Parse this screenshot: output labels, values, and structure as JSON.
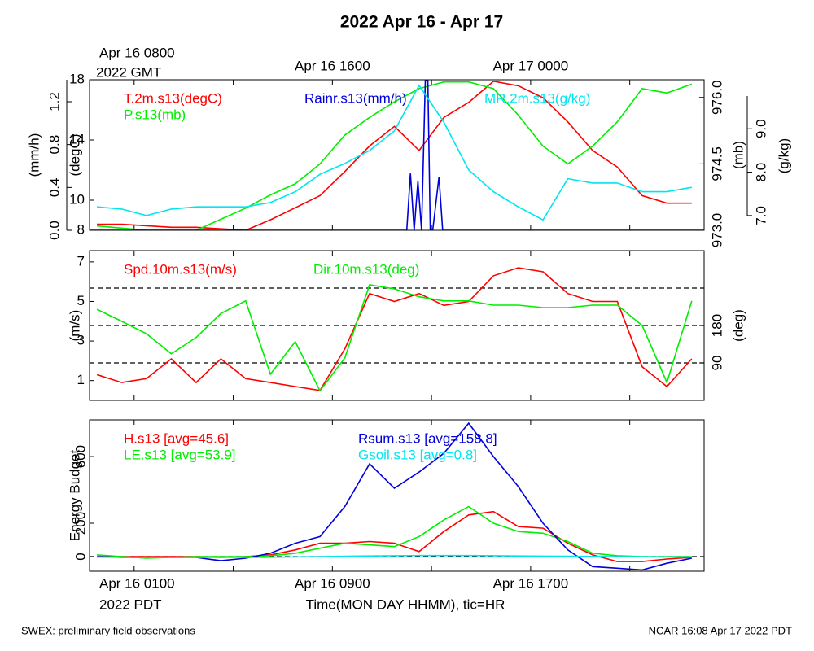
{
  "title": "2022 Apr 16 - Apr 17",
  "footer_left": "SWEX: preliminary field observations",
  "footer_right": "NCAR 16:08 Apr 17 2022 PDT",
  "time_axis": {
    "xlim": [
      -0.8,
      24
    ],
    "xticks": [
      {
        "value": 1,
        "label": "Apr 16 0100"
      },
      {
        "value": 9,
        "label": "Apr 16 0900"
      },
      {
        "value": 17,
        "label": "Apr 16 1700"
      }
    ],
    "minor_xticks": [
      5,
      13,
      21
    ],
    "gmt_ticks": [
      {
        "value": 1,
        "label": "Apr 16 0800"
      },
      {
        "value": 9,
        "label": "Apr 16 1600"
      },
      {
        "value": 17,
        "label": "Apr 17 0000"
      }
    ],
    "gmt_note": "2022 GMT",
    "pdt_note": "2022 PDT",
    "xlabel": "Time(MON DAY HHMM), tic=HR"
  },
  "chart_data": [
    {
      "type": "line",
      "x": [
        -0.5,
        0.5,
        1.5,
        2.5,
        3.5,
        4.5,
        5.5,
        6.5,
        7.5,
        8.5,
        9.5,
        10.5,
        11.5,
        12.5,
        13.5,
        14.5,
        15.5,
        16.5,
        17.5,
        18.5,
        19.5,
        20.5,
        21.5,
        22.5,
        23.5
      ],
      "axes": [
        {
          "label": "(degC)",
          "lim": [
            8,
            18
          ],
          "ticks": [
            8,
            10,
            14,
            18
          ]
        },
        {
          "label": "(mm/h)",
          "lim": [
            0,
            1.405
          ],
          "ticks": [
            {
              "value": 0,
              "label": "0.0"
            },
            0.4,
            0.8,
            1.2
          ]
        },
        {
          "label": "(mb)",
          "lim": [
            973,
            976.4
          ],
          "ticks": [
            {
              "value": 973,
              "label": "973.0"
            },
            974.5,
            {
              "value": 976,
              "label": "976.0"
            }
          ]
        },
        {
          "label": "(g/kg)",
          "lim": [
            6.66,
            10.13
          ],
          "ticks": [
            {
              "value": 7,
              "label": "7.0"
            },
            {
              "value": 8,
              "label": "8.0"
            },
            {
              "value": 9,
              "label": "9.0"
            }
          ]
        }
      ],
      "series": [
        {
          "name": "T.2m.s13(degC)",
          "color": "#ff0000",
          "axis": 0,
          "values": [
            8.4,
            8.4,
            8.3,
            8.2,
            8.2,
            8.1,
            8.0,
            8.7,
            9.5,
            10.3,
            11.9,
            13.6,
            14.9,
            13.3,
            15.5,
            16.5,
            17.9,
            17.6,
            16.8,
            15.2,
            13.3,
            12.2,
            10.3,
            9.8,
            9.8
          ]
        },
        {
          "name": "P.s13(mb)",
          "color": "#00ee00",
          "axis": 2,
          "values": [
            973.1,
            973.05,
            973.0,
            973.0,
            973.0,
            973.25,
            973.5,
            973.8,
            974.05,
            974.5,
            975.15,
            975.55,
            975.9,
            976.2,
            976.35,
            976.35,
            976.2,
            975.6,
            974.9,
            974.5,
            974.9,
            975.45,
            976.2,
            976.1,
            976.3
          ]
        },
        {
          "name": "Rainr.s13(mm/h)",
          "color": "#0000dd",
          "axis": 1,
          "x": [
            -0.8,
            12.0,
            12.15,
            12.3,
            12.45,
            12.6,
            12.75,
            12.85,
            12.95,
            13.05,
            13.3,
            13.45,
            13.6,
            24
          ],
          "values": [
            0,
            0,
            0.53,
            0,
            0.46,
            0,
            1.4,
            1.4,
            0,
            0,
            0.5,
            0,
            0,
            0
          ]
        },
        {
          "name": "MR.2m.s13(g/kg)",
          "color": "#00e5ee",
          "axis": 3,
          "values": [
            7.2,
            7.15,
            7.0,
            7.15,
            7.2,
            7.2,
            7.2,
            7.3,
            7.55,
            7.95,
            8.2,
            8.5,
            8.95,
            10.0,
            9.15,
            8.05,
            7.55,
            7.2,
            6.9,
            7.85,
            7.75,
            7.75,
            7.55,
            7.55,
            7.65
          ]
        }
      ]
    },
    {
      "type": "line",
      "x": [
        -0.5,
        0.5,
        1.5,
        2.5,
        3.5,
        4.5,
        5.5,
        6.5,
        7.5,
        8.5,
        9.5,
        10.5,
        11.5,
        12.5,
        13.5,
        14.5,
        15.5,
        16.5,
        17.5,
        18.5,
        19.5,
        20.5,
        21.5,
        22.5,
        23.5
      ],
      "axes": [
        {
          "label": "(m/s)",
          "lim": [
            0,
            7.57
          ],
          "ticks": [
            1,
            3,
            5,
            7
          ]
        },
        {
          "label": "(deg)",
          "lim": [
            0,
            360
          ],
          "ticks": [
            90,
            180
          ],
          "hlines": [
            90,
            180,
            270
          ]
        }
      ],
      "series": [
        {
          "name": "Spd.10m.s13(m/s)",
          "color": "#ff0000",
          "axis": 0,
          "values": [
            1.3,
            0.9,
            1.1,
            2.1,
            0.9,
            2.1,
            1.1,
            0.9,
            0.7,
            0.5,
            2.6,
            5.4,
            5.0,
            5.4,
            4.8,
            5.0,
            6.3,
            6.7,
            6.5,
            5.4,
            5.0,
            5.0,
            1.7,
            0.7,
            2.1
          ]
        },
        {
          "name": "Dir.10m.s13(deg)",
          "color": "#00ee00",
          "axis": 1,
          "values": [
            219,
            190,
            160,
            112,
            151,
            209,
            239,
            63,
            141,
            23,
            102,
            278,
            268,
            249,
            239,
            239,
            229,
            229,
            223,
            223,
            229,
            229,
            180,
            43,
            239
          ]
        }
      ]
    },
    {
      "type": "line",
      "x": [
        -0.5,
        0.5,
        1.5,
        2.5,
        3.5,
        4.5,
        5.5,
        6.5,
        7.5,
        8.5,
        9.5,
        10.5,
        11.5,
        12.5,
        13.5,
        14.5,
        15.5,
        16.5,
        17.5,
        18.5,
        19.5,
        20.5,
        21.5,
        22.5,
        23.5
      ],
      "axes": [
        {
          "label": "Energy Budget",
          "lim": [
            -88,
            820
          ],
          "ticks": [
            0,
            200,
            600
          ],
          "hlines": [
            0
          ]
        }
      ],
      "series": [
        {
          "name": "H.s13 [avg=45.6]",
          "color": "#ff0000",
          "axis": 0,
          "values": [
            0,
            0,
            0,
            0,
            0,
            -5,
            0,
            10,
            40,
            80,
            80,
            90,
            80,
            30,
            150,
            250,
            270,
            180,
            170,
            80,
            10,
            -30,
            -30,
            -15,
            -5
          ]
        },
        {
          "name": "LE.s13 [avg=53.9]",
          "color": "#00ee00",
          "axis": 0,
          "values": [
            10,
            0,
            -10,
            -5,
            0,
            0,
            0,
            5,
            20,
            50,
            80,
            70,
            60,
            120,
            220,
            300,
            200,
            150,
            140,
            90,
            20,
            5,
            0,
            0,
            0
          ]
        },
        {
          "name": "Rsum.s13 [avg=158.8]",
          "color": "#0000dd",
          "axis": 0,
          "values": [
            0,
            -5,
            -5,
            -5,
            -5,
            -25,
            -10,
            20,
            80,
            120,
            300,
            556,
            410,
            507,
            620,
            800,
            600,
            420,
            200,
            40,
            -60,
            -70,
            -80,
            -40,
            -10
          ]
        },
        {
          "name": "Gsoil.s13 [avg=0.8]",
          "color": "#00e5ee",
          "axis": 0,
          "values": [
            -3,
            -4,
            -5,
            -5,
            -5,
            -5,
            -5,
            -4,
            -2,
            0,
            2,
            4,
            5,
            6,
            6,
            6,
            5,
            4,
            3,
            2,
            1,
            0,
            -1,
            -2,
            -3
          ]
        }
      ]
    }
  ]
}
